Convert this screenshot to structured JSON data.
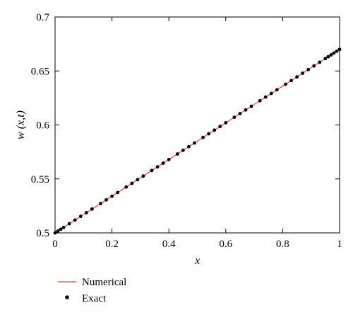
{
  "chart_data": {
    "type": "line",
    "title": "",
    "xlabel": "x",
    "ylabel": "w (x,t)",
    "xlim": [
      0,
      1
    ],
    "ylim": [
      0.5,
      0.7
    ],
    "xticks": [
      0,
      0.2,
      0.4,
      0.6,
      0.8,
      1
    ],
    "xtick_labels": [
      "0",
      "0.2",
      "0.4",
      "0.6",
      "0.8",
      "1"
    ],
    "yticks": [
      0.5,
      0.55,
      0.6,
      0.65,
      0.7
    ],
    "ytick_labels": [
      "0.5",
      "0.55",
      "0.6",
      "0.65",
      "0.7"
    ],
    "grid": false,
    "legend_placement": "below",
    "series": [
      {
        "name": "Numerical",
        "style": "line",
        "color": "#e8402a",
        "x": [
          0,
          1
        ],
        "y": [
          0.5,
          0.67
        ]
      },
      {
        "name": "Exact",
        "style": "markers",
        "color": "#000000",
        "x": [
          0,
          0.01,
          0.02,
          0.03,
          0.05,
          0.07,
          0.09,
          0.11,
          0.13,
          0.16,
          0.18,
          0.2,
          0.22,
          0.25,
          0.27,
          0.29,
          0.31,
          0.34,
          0.36,
          0.38,
          0.4,
          0.43,
          0.45,
          0.47,
          0.49,
          0.52,
          0.54,
          0.56,
          0.58,
          0.6,
          0.63,
          0.65,
          0.67,
          0.69,
          0.72,
          0.74,
          0.76,
          0.78,
          0.81,
          0.83,
          0.85,
          0.87,
          0.89,
          0.91,
          0.93,
          0.95,
          0.96,
          0.97,
          0.98,
          0.99,
          1.0
        ],
        "y": [
          0.5,
          0.5017,
          0.5034,
          0.5051,
          0.5085,
          0.5119,
          0.5153,
          0.5187,
          0.5221,
          0.5272,
          0.5306,
          0.534,
          0.5374,
          0.5425,
          0.5459,
          0.5493,
          0.5527,
          0.5578,
          0.5612,
          0.5646,
          0.568,
          0.5731,
          0.5765,
          0.5799,
          0.5833,
          0.5884,
          0.5918,
          0.5952,
          0.5986,
          0.602,
          0.6071,
          0.6105,
          0.6139,
          0.6173,
          0.6224,
          0.6258,
          0.6292,
          0.6326,
          0.6377,
          0.6411,
          0.6445,
          0.6479,
          0.6513,
          0.6547,
          0.6581,
          0.6615,
          0.6632,
          0.6649,
          0.6666,
          0.6683,
          0.67
        ]
      }
    ]
  }
}
